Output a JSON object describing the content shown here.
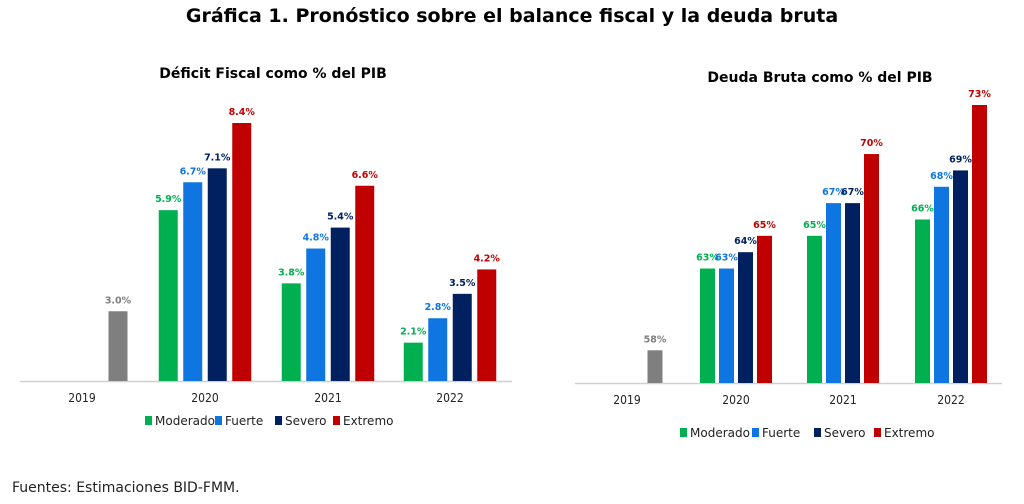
{
  "title": "Gráfica 1.  Pronóstico sobre el balance fiscal y la deuda bruta",
  "source": "Fuentes: Estimaciones BID-FMM.",
  "colors": {
    "base": "#7f7f7f",
    "Moderado": "#00b050",
    "Fuerte": "#0f75e0",
    "Severo": "#002060",
    "Extremo": "#c00000"
  },
  "chart_data": [
    {
      "type": "bar",
      "title": "Déficit Fiscal como % del PIB",
      "categories": [
        "2019",
        "2020",
        "2021",
        "2022"
      ],
      "ylim": [
        1,
        9
      ],
      "grid": false,
      "legend": "bottom",
      "base": {
        "category": "2019",
        "value": 3.0,
        "label": "3.0%"
      },
      "series": [
        {
          "name": "Moderado",
          "values": [
            null,
            5.9,
            3.8,
            2.1
          ],
          "labels": [
            null,
            "5.9%",
            "3.8%",
            "2.1%"
          ]
        },
        {
          "name": "Fuerte",
          "values": [
            null,
            6.7,
            4.8,
            2.8
          ],
          "labels": [
            null,
            "6.7%",
            "4.8%",
            "2.8%"
          ]
        },
        {
          "name": "Severo",
          "values": [
            null,
            7.1,
            5.4,
            3.5
          ],
          "labels": [
            null,
            "7.1%",
            "5.4%",
            "3.5%"
          ]
        },
        {
          "name": "Extremo",
          "values": [
            null,
            8.4,
            6.6,
            4.2
          ],
          "labels": [
            null,
            "8.4%",
            "6.6%",
            "4.2%"
          ]
        }
      ]
    },
    {
      "type": "bar",
      "title": "Deuda Bruta como % del PIB",
      "categories": [
        "2019",
        "2020",
        "2021",
        "2022"
      ],
      "ylim": [
        56,
        74
      ],
      "grid": false,
      "legend": "bottom",
      "base": {
        "category": "2019",
        "value": 58,
        "label": "58%"
      },
      "series": [
        {
          "name": "Moderado",
          "values": [
            null,
            63,
            65,
            66
          ],
          "labels": [
            null,
            "63%",
            "65%",
            "66%"
          ]
        },
        {
          "name": "Fuerte",
          "values": [
            null,
            63,
            67,
            68
          ],
          "labels": [
            null,
            "63%",
            "67%",
            "68%"
          ]
        },
        {
          "name": "Severo",
          "values": [
            null,
            64,
            67,
            69
          ],
          "labels": [
            null,
            "64%",
            "67%",
            "69%"
          ]
        },
        {
          "name": "Extremo",
          "values": [
            null,
            65,
            70,
            73
          ],
          "labels": [
            null,
            "65%",
            "70%",
            "73%"
          ]
        }
      ]
    }
  ]
}
